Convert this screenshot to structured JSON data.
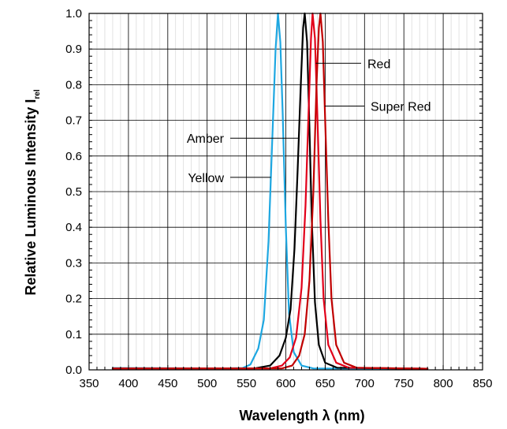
{
  "chart_data": {
    "type": "line",
    "title": "",
    "xlabel": "Wavelength λ (nm)",
    "ylabel": "Relative Luminous Intensity I",
    "ylabel_subscript": "rel",
    "xlim": [
      350,
      850
    ],
    "ylim": [
      0,
      1.0
    ],
    "x_ticks": [
      350,
      400,
      450,
      500,
      550,
      600,
      650,
      700,
      750,
      800,
      850
    ],
    "y_ticks": [
      0.0,
      0.1,
      0.2,
      0.3,
      0.4,
      0.5,
      0.6,
      0.7,
      0.8,
      0.9,
      1.0
    ],
    "x_tick_labels": [
      "350",
      "400",
      "450",
      "500",
      "550",
      "600",
      "650",
      "700",
      "750",
      "800",
      "850"
    ],
    "y_tick_labels": [
      "0.0",
      "0.1",
      "0.2",
      "0.3",
      "0.4",
      "0.5",
      "0.6",
      "0.7",
      "0.8",
      "0.9",
      "1.0"
    ],
    "grid": true,
    "legend": "none",
    "series": [
      {
        "name": "Yellow",
        "color": "#1ea7e1",
        "points": [
          [
            380,
            0.005
          ],
          [
            520,
            0.004
          ],
          [
            545,
            0.005
          ],
          [
            555,
            0.015
          ],
          [
            565,
            0.06
          ],
          [
            572,
            0.14
          ],
          [
            578,
            0.36
          ],
          [
            583,
            0.66
          ],
          [
            587,
            0.9
          ],
          [
            590,
            1.0
          ],
          [
            593,
            0.92
          ],
          [
            596,
            0.72
          ],
          [
            600,
            0.4
          ],
          [
            604,
            0.16
          ],
          [
            610,
            0.05
          ],
          [
            620,
            0.012
          ],
          [
            635,
            0.004
          ],
          [
            780,
            0.003
          ]
        ]
      },
      {
        "name": "Amber",
        "color": "#000000",
        "points": [
          [
            380,
            0.004
          ],
          [
            560,
            0.004
          ],
          [
            580,
            0.012
          ],
          [
            592,
            0.04
          ],
          [
            600,
            0.09
          ],
          [
            606,
            0.17
          ],
          [
            611,
            0.34
          ],
          [
            615,
            0.56
          ],
          [
            619,
            0.8
          ],
          [
            622,
            0.96
          ],
          [
            624,
            1.0
          ],
          [
            627,
            0.92
          ],
          [
            630,
            0.68
          ],
          [
            633,
            0.42
          ],
          [
            637,
            0.19
          ],
          [
            642,
            0.07
          ],
          [
            650,
            0.02
          ],
          [
            665,
            0.006
          ],
          [
            780,
            0.003
          ]
        ]
      },
      {
        "name": "Red",
        "color": "#e2001a",
        "points": [
          [
            380,
            0.004
          ],
          [
            580,
            0.004
          ],
          [
            595,
            0.012
          ],
          [
            605,
            0.035
          ],
          [
            613,
            0.09
          ],
          [
            620,
            0.23
          ],
          [
            625,
            0.46
          ],
          [
            629,
            0.73
          ],
          [
            632,
            0.93
          ],
          [
            634,
            1.0
          ],
          [
            637,
            0.93
          ],
          [
            640,
            0.72
          ],
          [
            644,
            0.42
          ],
          [
            648,
            0.2
          ],
          [
            654,
            0.07
          ],
          [
            664,
            0.02
          ],
          [
            680,
            0.006
          ],
          [
            780,
            0.003
          ]
        ]
      },
      {
        "name": "Super Red",
        "color": "#c00000",
        "points": [
          [
            380,
            0.004
          ],
          [
            595,
            0.004
          ],
          [
            608,
            0.012
          ],
          [
            617,
            0.04
          ],
          [
            624,
            0.1
          ],
          [
            630,
            0.25
          ],
          [
            635,
            0.5
          ],
          [
            639,
            0.8
          ],
          [
            642,
            0.96
          ],
          [
            644,
            1.0
          ],
          [
            647,
            0.92
          ],
          [
            650,
            0.7
          ],
          [
            654,
            0.42
          ],
          [
            658,
            0.2
          ],
          [
            664,
            0.07
          ],
          [
            674,
            0.02
          ],
          [
            690,
            0.006
          ],
          [
            780,
            0.003
          ]
        ]
      }
    ],
    "annotations": [
      {
        "text": "Red",
        "series": "Red",
        "value_y": 0.86
      },
      {
        "text": "Super Red",
        "series": "Super Red",
        "value_y": 0.74
      },
      {
        "text": "Amber",
        "series": "Amber",
        "value_y": 0.65
      },
      {
        "text": "Yellow",
        "series": "Yellow",
        "value_y": 0.54
      }
    ]
  }
}
